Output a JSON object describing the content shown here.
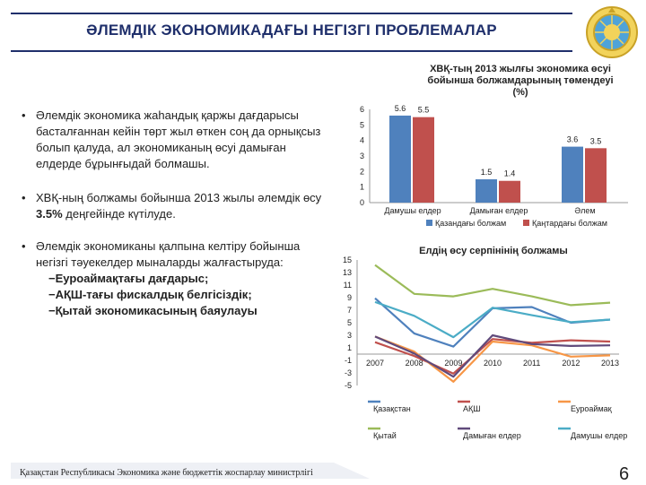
{
  "slide": {
    "title": "ӘЛЕМДІК ЭКОНОМИКАДАҒЫ НЕГІЗГІ ПРОБЛЕМАЛАР",
    "bullets": [
      "Әлемдік экономика жаһандық қаржы дағдарысы басталғаннан кейін төрт жыл өткен соң да орнықсыз болып қалуда, ал экономиканың өсуі дамыған елдерде бұрынғыдай болмашы.",
      "ХВҚ-ның болжамы бойынша 2013 жылы әлемдік өсу 3.5% деңгейінде күтілуде.",
      "Әлемдік экономиканы қалпына келтіру бойынша негізгі тәуекелдер мыналарды жалғастыруда:"
    ],
    "bullet2_pre": "ХВҚ-ның болжамы бойынша 2013 жылы әлемдік өсу ",
    "bullet2_bold": "3.5%",
    "bullet2_post": " деңгейінде күтілуде.",
    "risks": [
      "−Еуроаймақтағы дағдарыс;",
      "−АҚШ-тағы фискалдық белгісіздік;",
      "−Қытай экономикасының баяулауы"
    ],
    "footer": "Қазақстан Республикасы Экономика және бюджеттік жоспарлау министрлігі",
    "page_number": "6",
    "colors": {
      "title": "#1f2f6b",
      "blue": "#4f81bd",
      "red": "#c0504d"
    }
  },
  "chart_data": [
    {
      "type": "bar",
      "title": "ХВҚ-тың 2013 жылғы экономика өсуі бойынша болжамдарының төмендеуі (%)",
      "title_lines": [
        "ХВҚ-тың 2013 жылғы экономика өсуі",
        "бойынша болжамдарының төмендеуі",
        "(%)"
      ],
      "categories": [
        "Дамушы елдер",
        "Дамыған елдер",
        "Әлем"
      ],
      "series": [
        {
          "name": "Қазандағы болжам",
          "values": [
            5.6,
            1.5,
            3.6
          ],
          "color": "#4f81bd"
        },
        {
          "name": "Қаңтардағы болжам",
          "values": [
            5.5,
            1.4,
            3.5
          ],
          "color": "#c0504d"
        }
      ],
      "yticks": [
        "0",
        "1",
        "2",
        "3",
        "4",
        "5",
        "6"
      ],
      "ylim": [
        0,
        6
      ],
      "grid": false,
      "legend": "bottom"
    },
    {
      "type": "line",
      "title": "Елдің өсу серпінінің болжамы",
      "x": [
        2007,
        2008,
        2009,
        2010,
        2011,
        2012,
        2013
      ],
      "xticks": [
        "2007",
        "2008",
        "2009",
        "2010",
        "2011",
        "2012",
        "2013"
      ],
      "yticks": [
        "15",
        "13",
        "11",
        "9",
        "7",
        "5",
        "3",
        "1",
        "-1",
        "-3",
        "-5"
      ],
      "ylim": [
        -5,
        15
      ],
      "grid": false,
      "legend": "bottom",
      "series": [
        {
          "name": "Қазақстан",
          "values": [
            8.9,
            3.3,
            1.2,
            7.3,
            7.5,
            5.0,
            5.5
          ],
          "color": "#4f81bd"
        },
        {
          "name": "АҚШ",
          "values": [
            1.9,
            -0.3,
            -3.1,
            2.4,
            1.8,
            2.2,
            2.0
          ],
          "color": "#c0504d"
        },
        {
          "name": "Еуроаймақ",
          "values": [
            2.8,
            0.4,
            -4.4,
            2.0,
            1.4,
            -0.4,
            -0.2
          ],
          "color": "#f79646"
        },
        {
          "name": "Қытай",
          "values": [
            14.2,
            9.6,
            9.2,
            10.4,
            9.2,
            7.8,
            8.2
          ],
          "color": "#9bbb59"
        },
        {
          "name": "Дамыған елдер",
          "values": [
            2.8,
            0.1,
            -3.6,
            3.0,
            1.6,
            1.3,
            1.4
          ],
          "color": "#604a7b"
        },
        {
          "name": "Дамушы елдер",
          "values": [
            8.3,
            6.1,
            2.7,
            7.4,
            6.2,
            5.1,
            5.5
          ],
          "color": "#4bacc6"
        }
      ]
    }
  ]
}
